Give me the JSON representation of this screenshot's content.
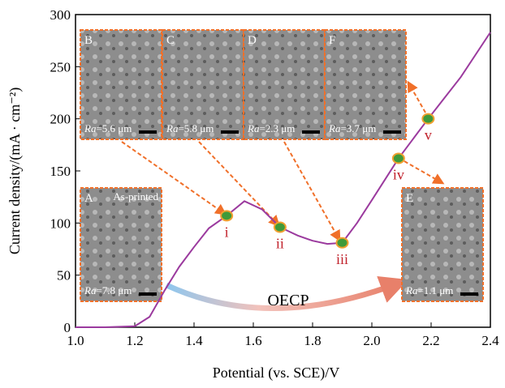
{
  "chart_data": {
    "type": "line",
    "xlabel": "Potential (vs. SCE)/V",
    "ylabel": "Current density/(mA · cm⁻²)",
    "xlim": [
      1.0,
      2.4
    ],
    "xticks": [
      {
        "value": 1.0,
        "label": "1.0"
      },
      {
        "value": 1.2,
        "label": "1.2"
      },
      {
        "value": 1.4,
        "label": "1.4"
      },
      {
        "value": 1.6,
        "label": "1.6"
      },
      {
        "value": 1.8,
        "label": "1.8"
      },
      {
        "value": 2.0,
        "label": "2.0"
      },
      {
        "value": 2.2,
        "label": "2.2"
      },
      {
        "value": 2.4,
        "label": "2.4"
      }
    ],
    "ylim": [
      0,
      300
    ],
    "yticks": [
      0,
      50,
      100,
      150,
      200,
      250,
      300
    ],
    "grid": false,
    "series": [
      {
        "color": "#9b3a9e",
        "x": [
          1.0,
          1.1,
          1.2,
          1.25,
          1.3,
          1.35,
          1.4,
          1.45,
          1.51,
          1.57,
          1.63,
          1.69,
          1.75,
          1.8,
          1.85,
          1.9,
          1.95,
          2.0,
          2.09,
          2.19,
          2.3,
          2.4
        ],
        "values": [
          0,
          0,
          1,
          10,
          35,
          58,
          77,
          95,
          107,
          121,
          113,
          96,
          88,
          83,
          80,
          81,
          100,
          122,
          162,
          200,
          240,
          283
        ]
      }
    ],
    "points": [
      {
        "label": "i",
        "x": 1.51,
        "y": 107
      },
      {
        "label": "ii",
        "x": 1.69,
        "y": 96
      },
      {
        "label": "iii",
        "x": 1.9,
        "y": 81
      },
      {
        "label": "iv",
        "x": 2.09,
        "y": 162
      },
      {
        "label": "v",
        "x": 2.19,
        "y": 200
      }
    ],
    "insets": [
      {
        "letter": "B",
        "ra_symbol": "Ra",
        "ra_value": "=5.6 μm"
      },
      {
        "letter": "C",
        "ra_symbol": "Ra",
        "ra_value": "=5.8 μm"
      },
      {
        "letter": "D",
        "ra_symbol": "Ra",
        "ra_value": "=2.3 μm"
      },
      {
        "letter": "F",
        "ra_symbol": "Ra",
        "ra_value": "=3.7 μm"
      },
      {
        "letter": "A",
        "note": "As-printed",
        "ra_symbol": "Ra",
        "ra_value": "=7.8 μm"
      },
      {
        "letter": "E",
        "ra_symbol": "Ra",
        "ra_value": "=1.1 μm"
      }
    ],
    "annotation": "OECP"
  }
}
